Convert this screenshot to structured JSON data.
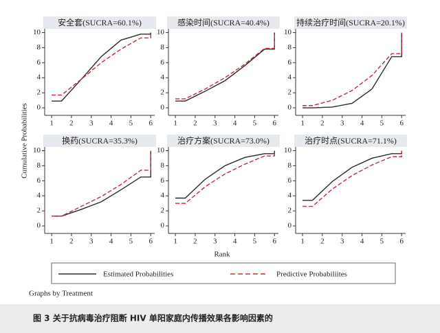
{
  "chart_data": [
    {
      "type": "line",
      "title": "安全套(SUCRA=60.1%)",
      "x": [
        1,
        1.5,
        2.5,
        3.5,
        4.5,
        5.5,
        6,
        6
      ],
      "xlim": [
        0.65,
        6.2
      ],
      "xticks": [
        1,
        2,
        3,
        4,
        5,
        6
      ],
      "ylim": [
        -1,
        10.5
      ],
      "yticks": [
        0,
        2,
        4,
        6,
        8,
        10
      ],
      "series": [
        {
          "name": "Estimated Probabilities",
          "color": "#2b2b2b",
          "values": [
            0.9,
            0.9,
            3.8,
            6.8,
            9.0,
            9.8,
            9.8,
            10
          ]
        },
        {
          "name": "Predictive Probabiliites",
          "color": "#c8283a",
          "values": [
            1.7,
            1.7,
            3.8,
            6.0,
            7.8,
            9.3,
            9.3,
            10
          ]
        }
      ]
    },
    {
      "type": "line",
      "title": "感染时间(SUCRA=40.4%)",
      "x": [
        1,
        1.5,
        2.5,
        3.5,
        4.5,
        5.5,
        6,
        6
      ],
      "xlim": [
        0.65,
        6.2
      ],
      "xticks": [
        1,
        2,
        3,
        4,
        5,
        6
      ],
      "ylim": [
        -1,
        10.5
      ],
      "yticks": [
        0,
        2,
        4,
        6,
        8,
        10
      ],
      "series": [
        {
          "name": "Estimated Probabilities",
          "color": "#2b2b2b",
          "values": [
            0.9,
            0.9,
            2.2,
            3.6,
            5.6,
            7.8,
            7.8,
            10
          ]
        },
        {
          "name": "Predictive Probabiliites",
          "color": "#c8283a",
          "values": [
            1.2,
            1.2,
            2.5,
            4.0,
            5.8,
            7.9,
            7.9,
            10
          ]
        }
      ]
    },
    {
      "type": "line",
      "title": "持续治疗时间(SUCRA=20.1%)",
      "x": [
        1,
        1.5,
        2.5,
        3.5,
        4.5,
        5.5,
        6,
        6
      ],
      "xlim": [
        0.65,
        6.2
      ],
      "xticks": [
        1,
        2,
        3,
        4,
        5,
        6
      ],
      "ylim": [
        -1,
        10.5
      ],
      "yticks": [
        0,
        2,
        4,
        6,
        8,
        10
      ],
      "series": [
        {
          "name": "Estimated Probabilities",
          "color": "#2b2b2b",
          "values": [
            0,
            0,
            0.1,
            0.6,
            2.5,
            6.8,
            6.8,
            10
          ]
        },
        {
          "name": "Predictive Probabiliites",
          "color": "#c8283a",
          "values": [
            0.3,
            0.3,
            1.0,
            2.3,
            4.3,
            7.2,
            7.2,
            10
          ]
        }
      ]
    },
    {
      "type": "line",
      "title": "换药(SUCRA=35.3%)",
      "x": [
        1,
        1.5,
        2.5,
        3.5,
        4.5,
        5.5,
        6,
        6
      ],
      "xlim": [
        0.65,
        6.2
      ],
      "xticks": [
        1,
        2,
        3,
        4,
        5,
        6
      ],
      "ylim": [
        -1,
        10.5
      ],
      "yticks": [
        0,
        2,
        4,
        6,
        8,
        10
      ],
      "series": [
        {
          "name": "Estimated Probabilities",
          "color": "#2b2b2b",
          "values": [
            1.3,
            1.3,
            2.2,
            3.2,
            4.8,
            6.5,
            6.5,
            10
          ]
        },
        {
          "name": "Predictive Probabiliites",
          "color": "#c8283a",
          "values": [
            1.3,
            1.3,
            2.6,
            3.9,
            5.5,
            7.4,
            7.4,
            10
          ]
        }
      ]
    },
    {
      "type": "line",
      "title": "治疗方案(SUCRA=73.0%)",
      "x": [
        1,
        1.5,
        2.5,
        3.5,
        4.5,
        5.5,
        6,
        6
      ],
      "xlim": [
        0.65,
        6.2
      ],
      "xticks": [
        1,
        2,
        3,
        4,
        5,
        6
      ],
      "ylim": [
        -1,
        10.5
      ],
      "yticks": [
        0,
        2,
        4,
        6,
        8,
        10
      ],
      "series": [
        {
          "name": "Estimated Probabilities",
          "color": "#2b2b2b",
          "values": [
            3.7,
            3.7,
            6.2,
            8.0,
            9.1,
            9.6,
            9.6,
            10
          ]
        },
        {
          "name": "Predictive Probabiliites",
          "color": "#c8283a",
          "values": [
            3.0,
            3.0,
            5.2,
            6.9,
            8.2,
            9.3,
            9.3,
            10
          ]
        }
      ]
    },
    {
      "type": "line",
      "title": "治疗时点(SUCRA=71.1%)",
      "x": [
        1,
        1.5,
        2.5,
        3.5,
        4.5,
        5.5,
        6,
        6
      ],
      "xlim": [
        0.65,
        6.2
      ],
      "xticks": [
        1,
        2,
        3,
        4,
        5,
        6
      ],
      "ylim": [
        -1,
        10.5
      ],
      "yticks": [
        0,
        2,
        4,
        6,
        8,
        10
      ],
      "series": [
        {
          "name": "Estimated Probabilities",
          "color": "#2b2b2b",
          "values": [
            3.4,
            3.4,
            5.9,
            7.8,
            9.0,
            9.6,
            9.6,
            10
          ]
        },
        {
          "name": "Predictive Probabiliites",
          "color": "#c8283a",
          "values": [
            2.6,
            2.6,
            4.9,
            6.7,
            8.1,
            9.2,
            9.2,
            10
          ]
        }
      ]
    }
  ],
  "y_label": "Cumulative Probabilities",
  "x_label": "Rank",
  "note": "Graphs by Treatment",
  "caption": "图 3  关于抗病毒治疗阻断 HIV 单阳家庭内传播效果各影响因素的"
}
